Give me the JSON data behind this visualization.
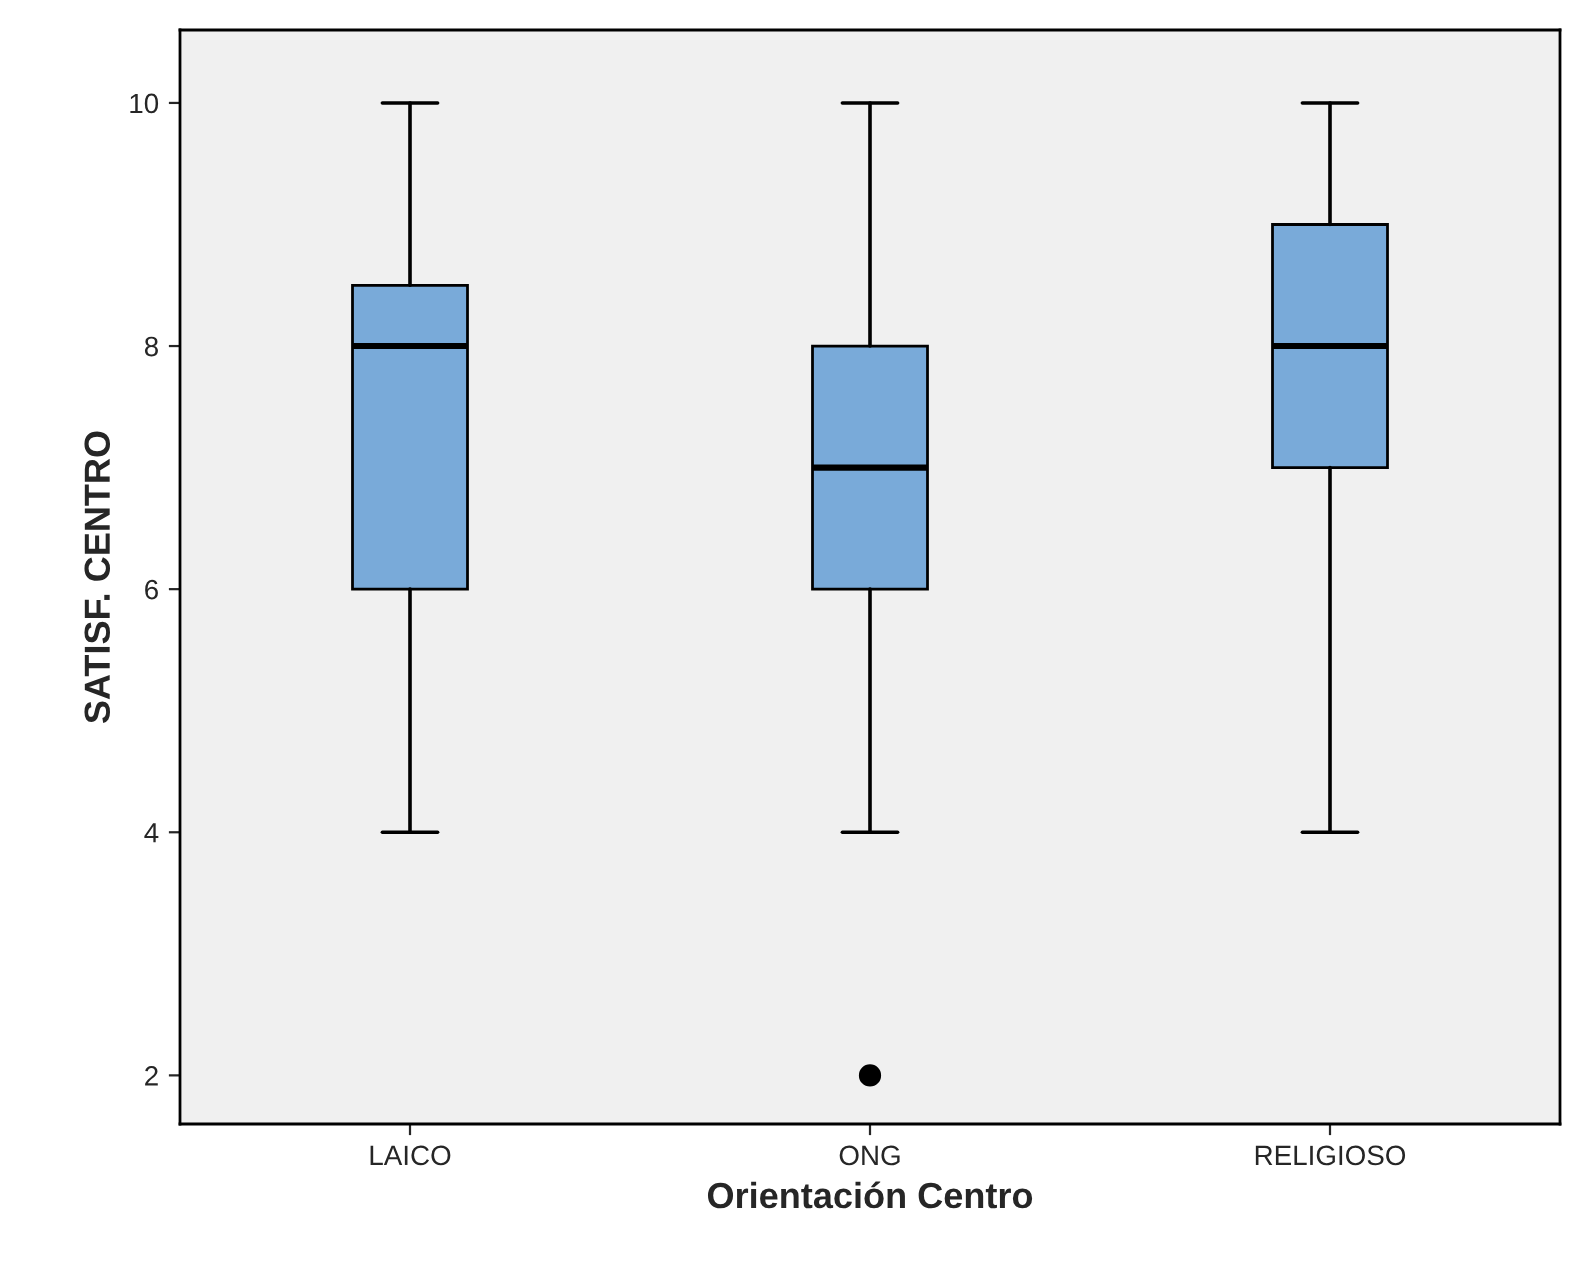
{
  "chart_data": {
    "type": "box",
    "xlabel": "Orientación Centro",
    "ylabel": "SATISF. CENTRO",
    "categories": [
      "LAICO",
      "ONG",
      "RELIGIOSO"
    ],
    "boxes": [
      {
        "low": 4,
        "q1": 6,
        "median": 8,
        "q3": 8.5,
        "high": 10
      },
      {
        "low": 4,
        "q1": 6,
        "median": 7,
        "q3": 8,
        "high": 10,
        "outliers": [
          2
        ]
      },
      {
        "low": 4,
        "q1": 7,
        "median": 8,
        "q3": 9,
        "high": 10
      }
    ],
    "color": "#79aad9",
    "ylim": [
      1.6,
      10.6
    ],
    "yticks": [
      2,
      4,
      6,
      8,
      10
    ],
    "grid": false,
    "legend": false
  }
}
